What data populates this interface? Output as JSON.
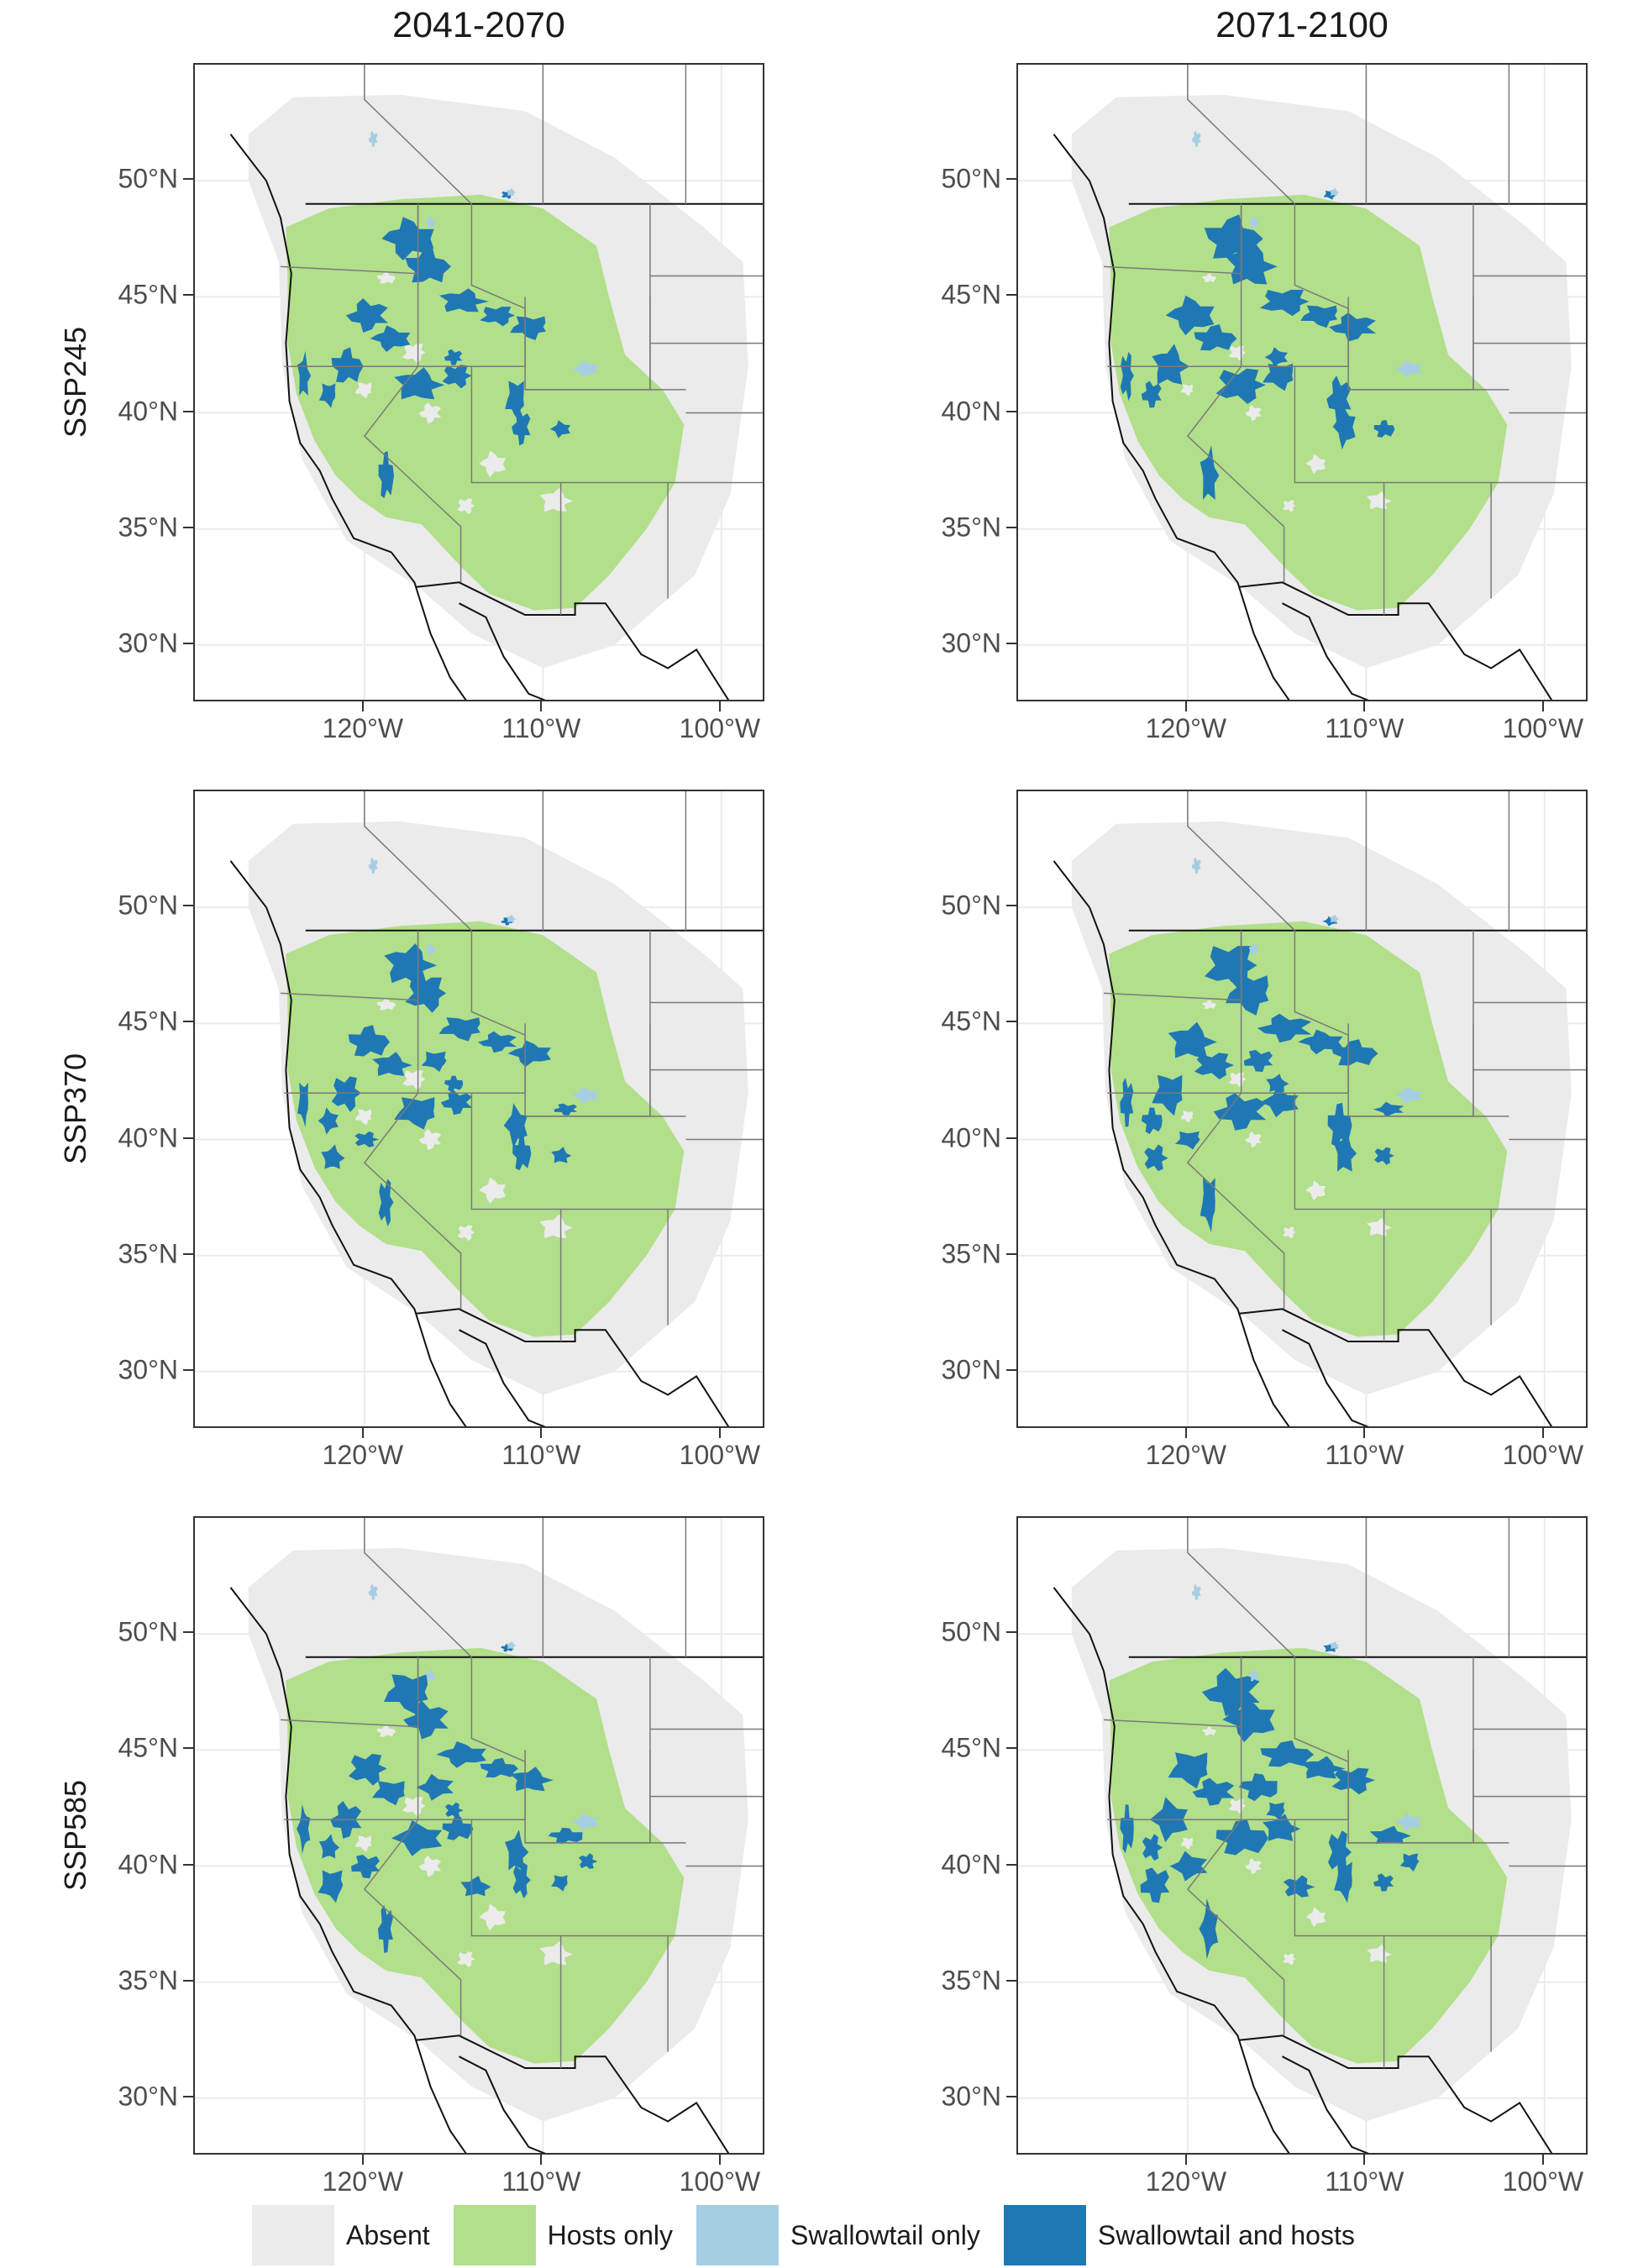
{
  "chart_data": {
    "type": "map",
    "columns": [
      "2041-2070",
      "2071-2100"
    ],
    "rows": [
      "SSP245",
      "SSP370",
      "SSP585"
    ],
    "y_ticks": [
      "30°N",
      "35°N",
      "40°N",
      "45°N",
      "50°N"
    ],
    "y_tick_values": [
      30,
      35,
      40,
      45,
      50
    ],
    "x_ticks": [
      "120°W",
      "110°W",
      "100°W"
    ],
    "x_tick_values": [
      -120,
      -110,
      -100
    ],
    "lon_range": [
      -129.5,
      -97.5
    ],
    "lat_range": [
      27.5,
      55
    ],
    "legend": [
      {
        "label": "Absent",
        "color": "#ebebeb"
      },
      {
        "label": "Hosts only",
        "color": "#b2df8a"
      },
      {
        "label": "Swallowtail only",
        "color": "#a6cee3"
      },
      {
        "label": "Swallowtail and hosts",
        "color": "#1f78b4"
      }
    ],
    "grid": true
  }
}
